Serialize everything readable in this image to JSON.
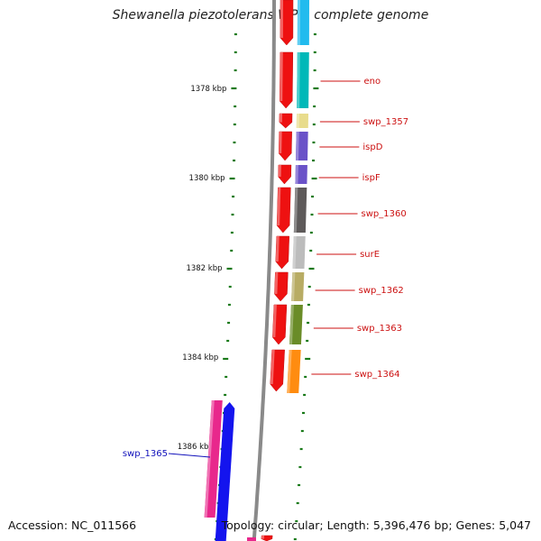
{
  "title": "Shewanella piezotolerans WP3, complete genome",
  "footer": {
    "accession": "Accession: NC_011566",
    "summary": "Topology: circular; Length: 5,396,476 bp; Genes: 5,047"
  },
  "ruler": {
    "tick_labels": [
      "1378 kbp",
      "1380 kbp",
      "1382 kbp",
      "1384 kbp",
      "1386 kbp"
    ],
    "tick_color": "#1a7a1a"
  },
  "genes_right": [
    {
      "label": "eno",
      "color": "#00b8b8"
    },
    {
      "label": "swp_1357",
      "color": "#e8dc8c"
    },
    {
      "label": "ispD",
      "color": "#6a52c8"
    },
    {
      "label": "ispF",
      "color": "#6a52c8"
    },
    {
      "label": "swp_1360",
      "color": "#5e5a5a"
    },
    {
      "label": "surE",
      "color": "#bcbcbc"
    },
    {
      "label": "swp_1362",
      "color": "#b8ac64"
    },
    {
      "label": "swp_1363",
      "color": "#6a8c28"
    },
    {
      "label": "swp_1364",
      "color": "#ff8c10"
    }
  ],
  "genes_left": [
    {
      "label": "swp_1365",
      "color": "#e8288c"
    }
  ],
  "colors": {
    "cds_forward": "#ee1111",
    "cds_reverse": "#1414ee",
    "backbone": "#8a8a8a",
    "label_right": "#cc1111",
    "label_left": "#1111bb",
    "top_category": "#22bbee"
  }
}
